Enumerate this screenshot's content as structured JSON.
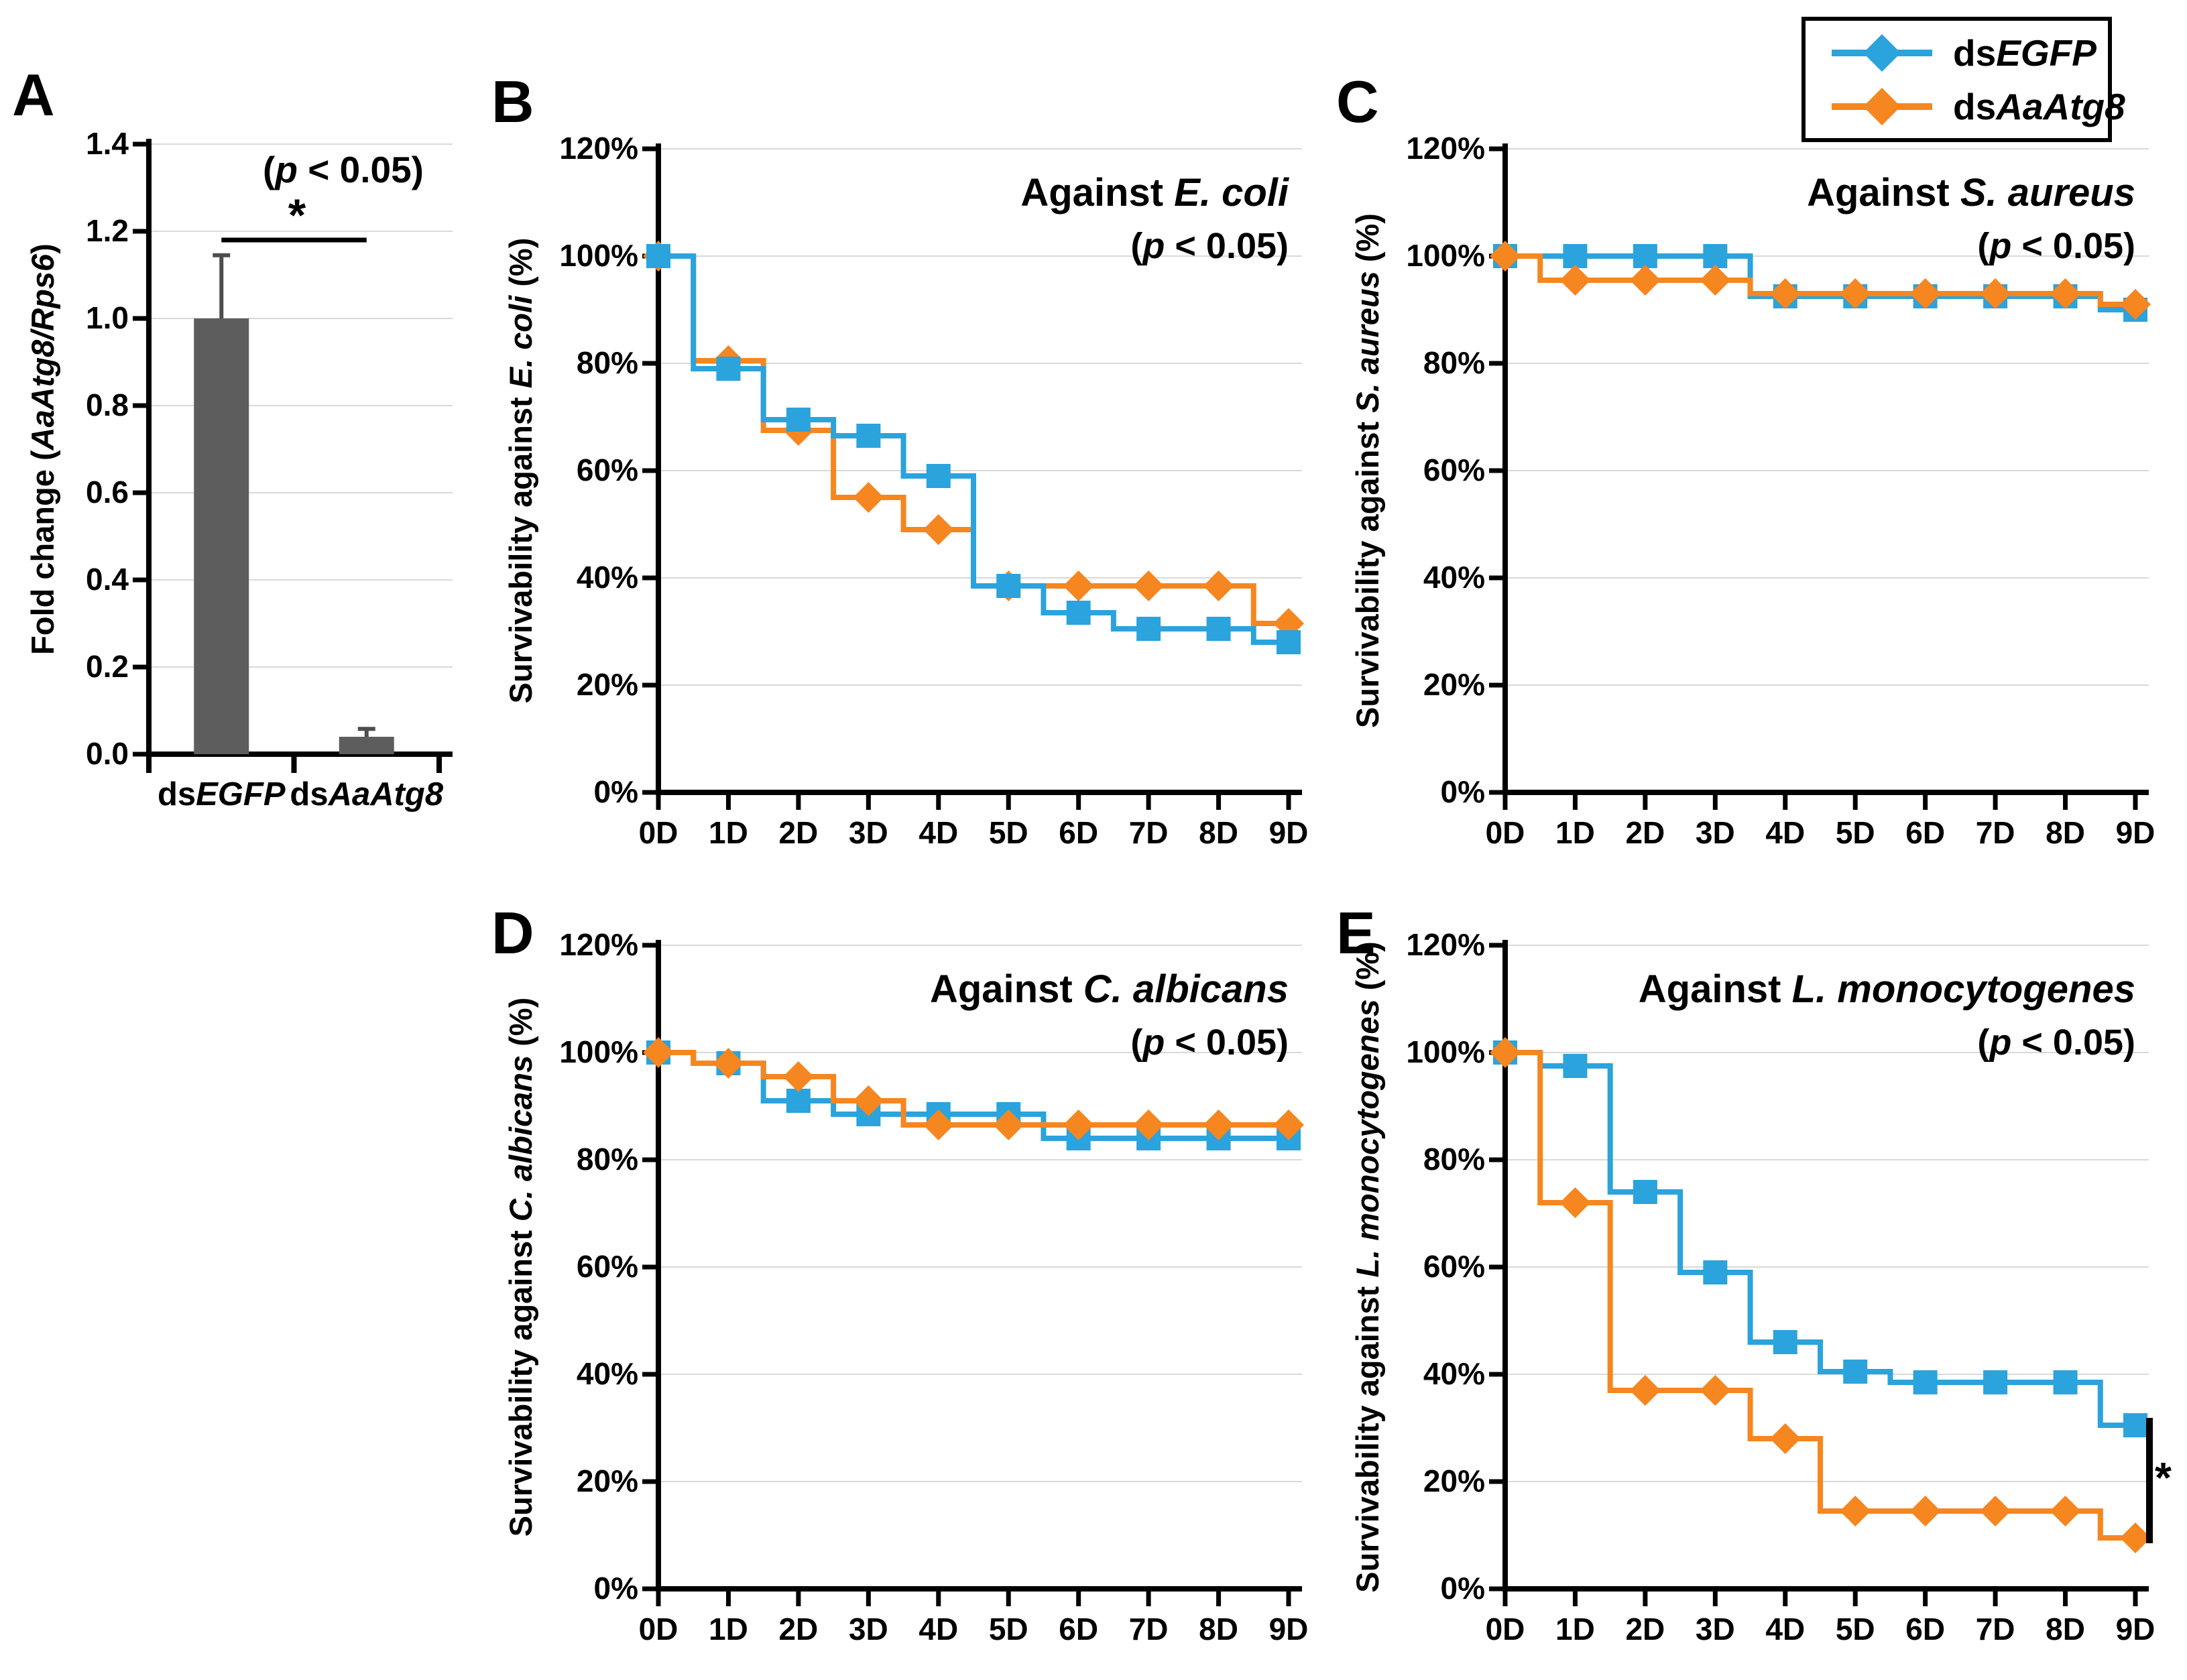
{
  "colors": {
    "dsEGFP": "#2BA3DC",
    "dsAaAtg8": "#F6861F",
    "bar": "#5D5D5D",
    "grid": "#D9D9D9",
    "axis": "#000000"
  },
  "legend": {
    "item1_pre": "ds",
    "item1_italic": "EGFP",
    "item2_pre": "ds",
    "item2_italic": "AaAtg8"
  },
  "panelA": {
    "letter": "A",
    "p_open": "(",
    "p_it": "p",
    "p_rest": " < 0.05)",
    "sig": "*",
    "ylabel_pre": "Fold change (",
    "ylabel_italic": "AaAtg8/Rps6",
    "ylabel_post": ")",
    "cat1_pre": "ds",
    "cat1_italic": "EGFP",
    "cat2_pre": "ds",
    "cat2_italic": "AaAtg8"
  },
  "panels": {
    "B": {
      "letter": "B",
      "title_pre": "Against ",
      "title_italic": "E. coli",
      "p_open": "(",
      "p_it": "p",
      "p_rest": " < 0.05)",
      "ylabel_pre": "Survivability against ",
      "ylabel_italic": "E. coli",
      "ylabel_post": " (%)"
    },
    "C": {
      "letter": "C",
      "title_pre": "Against ",
      "title_italic": "S. aureus",
      "p_open": "(",
      "p_it": "p",
      "p_rest": " < 0.05)",
      "ylabel_pre": "Survivability against ",
      "ylabel_italic": "S. aureus",
      "ylabel_post": " (%)"
    },
    "D": {
      "letter": "D",
      "title_pre": "Against ",
      "title_italic": "C. albicans",
      "p_open": "(",
      "p_it": "p",
      "p_rest": " < 0.05)",
      "ylabel_pre": "Survivability against ",
      "ylabel_italic": "C. albicans",
      "ylabel_post": " (%)"
    },
    "E": {
      "letter": "E",
      "title_pre": "Against ",
      "title_italic": "L. monocytogenes",
      "p_open": "(",
      "p_it": "p",
      "p_rest": " < 0.05)",
      "ylabel_pre": "Survivability against ",
      "ylabel_italic": "L. monocytogenes",
      "ylabel_post": " (%)",
      "sig": "*"
    }
  },
  "chart_data": [
    {
      "panel": "A",
      "type": "bar",
      "ylabel": "Fold change (AaAtg8/Rps6)",
      "categories": [
        "dsEGFP",
        "dsAaAtg8"
      ],
      "values": [
        1.0,
        0.04
      ],
      "error_up": [
        0.145,
        0.018
      ],
      "ylim": [
        0,
        1.4
      ],
      "ytick_values": [
        0,
        0.2,
        0.4,
        0.6,
        0.8,
        1.0,
        1.2,
        1.4
      ],
      "yticks": [
        "0.0",
        "0.2",
        "0.4",
        "0.6",
        "0.8",
        "1.0",
        "1.2",
        "1.4"
      ],
      "annotation": "(p < 0.05)",
      "significance_label": "*",
      "significance_y": 1.18
    },
    {
      "panel": "B",
      "type": "step",
      "title": "Against E. coli",
      "pvalue": "(p < 0.05)",
      "ylabel": "Survivability against E. coli (%)",
      "x": [
        "0D",
        "1D",
        "2D",
        "3D",
        "4D",
        "5D",
        "6D",
        "7D",
        "8D",
        "9D"
      ],
      "ylim": [
        0,
        120
      ],
      "ytick_values": [
        0,
        20,
        40,
        60,
        80,
        100,
        120
      ],
      "yticks": [
        "0%",
        "20%",
        "40%",
        "60%",
        "80%",
        "100%",
        "120%"
      ],
      "series": [
        {
          "name": "dsEGFP",
          "marker": "square",
          "values": [
            100,
            79,
            69.5,
            66.5,
            59,
            38.5,
            33.5,
            30.5,
            30.5,
            28
          ]
        },
        {
          "name": "dsAaAtg8",
          "marker": "diamond",
          "values": [
            100,
            80.5,
            67.5,
            55,
            49,
            38.5,
            38.5,
            38.5,
            38.5,
            31.5
          ]
        }
      ]
    },
    {
      "panel": "C",
      "type": "step",
      "title": "Against S. aureus",
      "pvalue": "(p < 0.05)",
      "ylabel": "Survivability against S. aureus (%)",
      "x": [
        "0D",
        "1D",
        "2D",
        "3D",
        "4D",
        "5D",
        "6D",
        "7D",
        "8D",
        "9D"
      ],
      "ylim": [
        0,
        120
      ],
      "ytick_values": [
        0,
        20,
        40,
        60,
        80,
        100,
        120
      ],
      "yticks": [
        "0%",
        "20%",
        "40%",
        "60%",
        "80%",
        "100%",
        "120%"
      ],
      "series": [
        {
          "name": "dsEGFP",
          "marker": "square",
          "values": [
            100,
            100,
            100,
            100,
            92.5,
            92.5,
            92.5,
            92.5,
            92.5,
            90
          ]
        },
        {
          "name": "dsAaAtg8",
          "marker": "diamond",
          "values": [
            100,
            95.5,
            95.5,
            95.5,
            93,
            93,
            93,
            93,
            93,
            91
          ]
        }
      ]
    },
    {
      "panel": "D",
      "type": "step",
      "title": "Against C. albicans",
      "pvalue": "(p < 0.05)",
      "ylabel": "Survivability against C. albicans (%)",
      "x": [
        "0D",
        "1D",
        "2D",
        "3D",
        "4D",
        "5D",
        "6D",
        "7D",
        "8D",
        "9D"
      ],
      "ylim": [
        0,
        120
      ],
      "ytick_values": [
        0,
        20,
        40,
        60,
        80,
        100,
        120
      ],
      "yticks": [
        "0%",
        "20%",
        "40%",
        "60%",
        "80%",
        "100%",
        "120%"
      ],
      "series": [
        {
          "name": "dsEGFP",
          "marker": "square",
          "values": [
            100,
            98,
            91,
            88.5,
            88.5,
            88.5,
            84,
            84,
            84,
            84
          ]
        },
        {
          "name": "dsAaAtg8",
          "marker": "diamond",
          "values": [
            100,
            98,
            95.5,
            91,
            86.5,
            86.5,
            86.5,
            86.5,
            86.5,
            86.5
          ]
        }
      ]
    },
    {
      "panel": "E",
      "type": "step",
      "title": "Against L. monocytogenes",
      "pvalue": "(p < 0.05)",
      "ylabel": "Survivability against L. monocytogenes (%)",
      "x": [
        "0D",
        "1D",
        "2D",
        "3D",
        "4D",
        "5D",
        "6D",
        "7D",
        "8D",
        "9D"
      ],
      "ylim": [
        0,
        120
      ],
      "ytick_values": [
        0,
        20,
        40,
        60,
        80,
        100,
        120
      ],
      "yticks": [
        "0%",
        "20%",
        "40%",
        "60%",
        "80%",
        "100%",
        "120%"
      ],
      "significance_label": "*",
      "series": [
        {
          "name": "dsEGFP",
          "marker": "square",
          "values": [
            100,
            97.5,
            74,
            59,
            46,
            40.5,
            38.5,
            38.5,
            38.5,
            30.5
          ]
        },
        {
          "name": "dsAaAtg8",
          "marker": "diamond",
          "values": [
            100,
            72,
            37,
            37,
            28,
            14.5,
            14.5,
            14.5,
            14.5,
            9.5
          ]
        }
      ]
    }
  ]
}
